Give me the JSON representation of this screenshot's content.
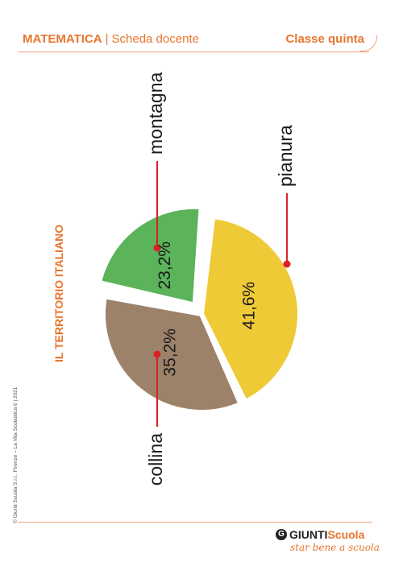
{
  "header": {
    "subject": "MATEMATICA",
    "separator": "|",
    "kind": "Scheda docente",
    "class_label": "Classe quinta"
  },
  "side_title": "IL TERRITORIO ITALIANO",
  "copyright": "© Giunti Scuola S.r.l., Firenze – La Vita Scolastica 6 | 2021",
  "logo": {
    "brand_a": "GIUNTI",
    "brand_b": "Scuola",
    "tagline": "star bene a scuola"
  },
  "colors": {
    "accent": "#e8762d",
    "pointer": "#d92127"
  },
  "chart_data": {
    "type": "pie",
    "title": "IL TERRITORIO ITALIANO",
    "categories": [
      "montagna",
      "pianura",
      "collina"
    ],
    "values": [
      35.2,
      23.2,
      41.6
    ],
    "value_labels": [
      "35,2%",
      "23,2%",
      "41,6%"
    ],
    "colors": [
      "#9d826a",
      "#5bb35a",
      "#efca37"
    ],
    "exploded": "pianura"
  }
}
